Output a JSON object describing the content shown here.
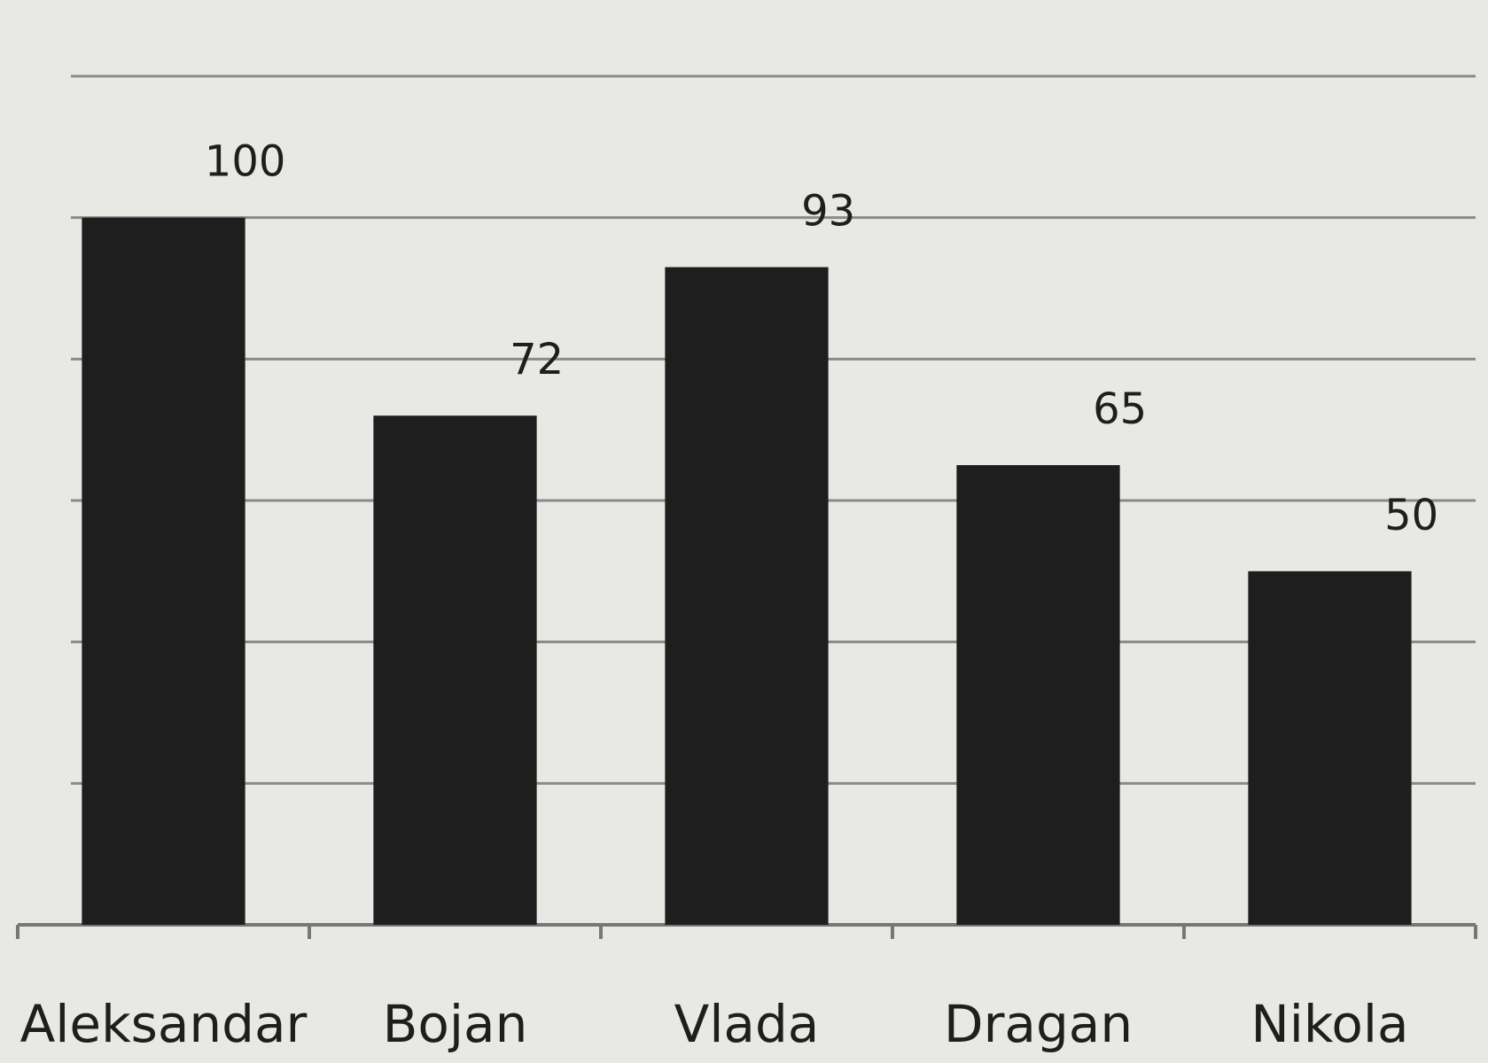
{
  "chart_data": {
    "type": "bar",
    "categories": [
      "Aleksandar",
      "Bojan",
      "Vlada",
      "Dragan",
      "Nikola"
    ],
    "values": [
      100,
      72,
      93,
      65,
      50
    ],
    "color": "#1e1e1e",
    "ylim": [
      0,
      120
    ],
    "yticks": [
      0,
      20,
      40,
      60,
      80,
      100,
      120
    ],
    "grid": true
  }
}
